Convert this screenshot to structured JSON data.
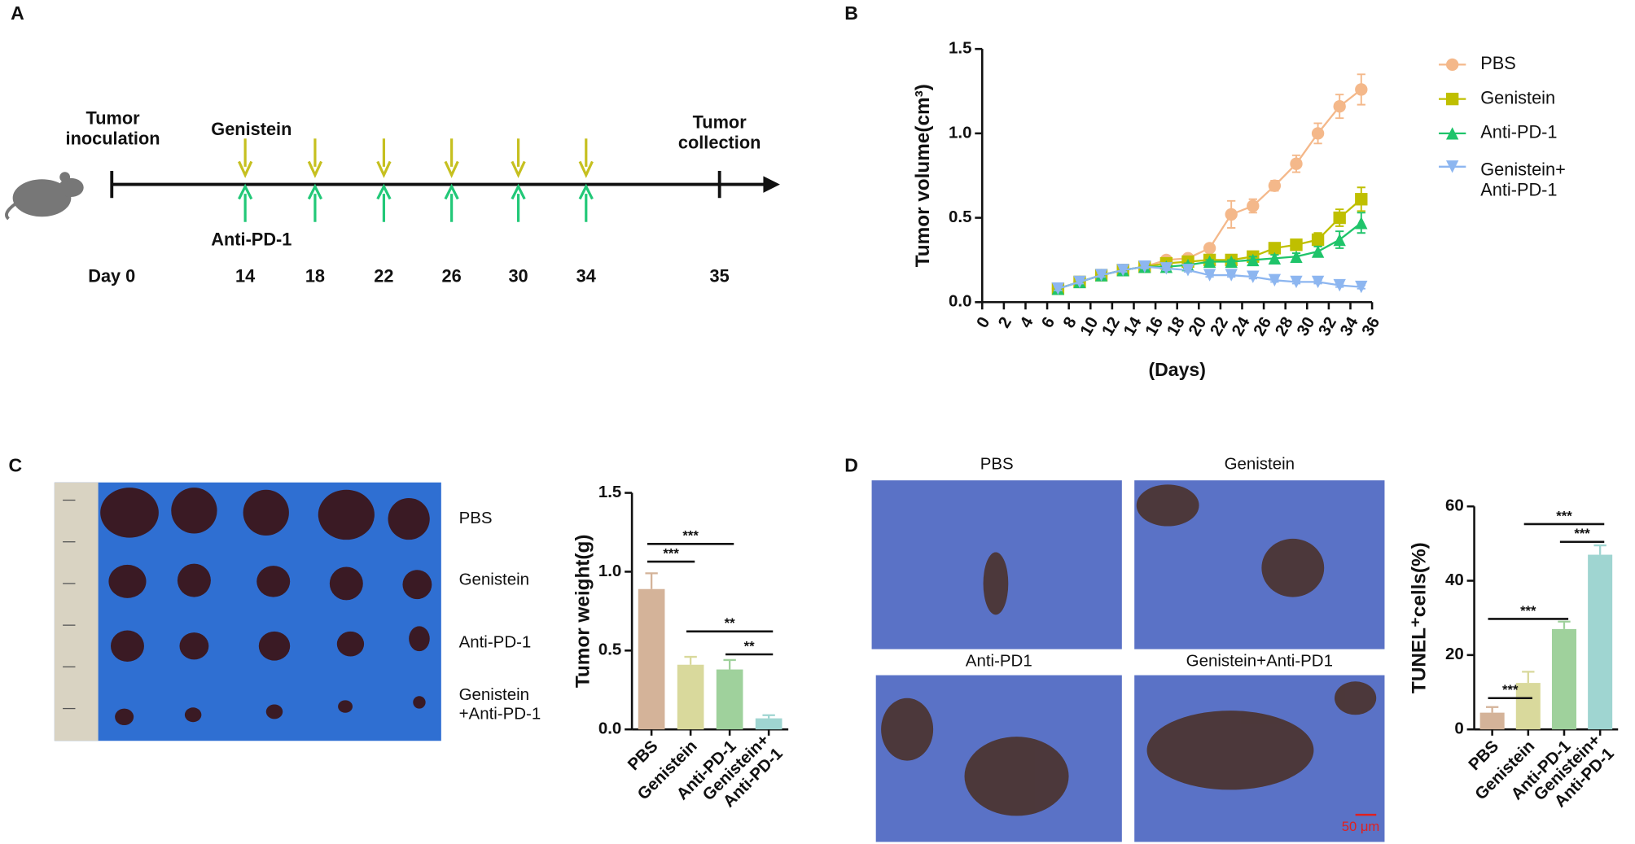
{
  "panel_labels": [
    "A",
    "B",
    "C",
    "D"
  ],
  "timeline": {
    "start_label": "Tumor\ninoculation",
    "end_label": "Tumor\ncollection",
    "top_label": "Genistein",
    "bottom_label": "Anti-PD-1",
    "days": [
      "Day 0",
      14,
      18,
      22,
      26,
      30,
      34,
      35
    ]
  },
  "photo_c": {
    "rows": [
      "PBS",
      "Genistein",
      "Anti-PD-1",
      "Genistein\n+Anti-PD-1"
    ]
  },
  "photo_d": {
    "titles": [
      "PBS",
      "Genistein",
      "Anti-PD1",
      "Genistein+Anti-PD1"
    ],
    "scale_bar": "50 μm"
  },
  "chart_data": [
    {
      "type": "line",
      "xlabel": "(Days)",
      "ylabel": "Tumor volume(cm³)",
      "x": [
        7,
        9,
        11,
        13,
        15,
        17,
        19,
        21,
        23,
        25,
        27,
        29,
        31,
        33,
        35
      ],
      "xlim": [
        0,
        36
      ],
      "xticks": [
        0,
        2,
        4,
        6,
        8,
        10,
        12,
        14,
        16,
        18,
        20,
        22,
        24,
        26,
        28,
        30,
        32,
        34,
        36
      ],
      "ylim": [
        0,
        1.5
      ],
      "yticks": [
        {
          "value": 0,
          "label": "0.0"
        },
        0.5,
        {
          "value": 1,
          "label": "1.0"
        },
        1.5
      ],
      "legend": "right",
      "series": [
        {
          "name": "PBS",
          "color": "#f4b88a",
          "marker": "circle",
          "values": [
            0.08,
            0.12,
            0.16,
            0.19,
            0.21,
            0.25,
            0.26,
            0.32,
            0.52,
            0.57,
            0.69,
            0.82,
            1.0,
            1.16,
            1.26
          ],
          "errors": [
            0.01,
            0.01,
            0.01,
            0.01,
            0.01,
            0.02,
            0.02,
            0.02,
            0.08,
            0.04,
            0.03,
            0.05,
            0.06,
            0.07,
            0.09
          ]
        },
        {
          "name": "Genistein",
          "color": "#bfbf00",
          "marker": "square",
          "values": [
            0.08,
            0.12,
            0.16,
            0.19,
            0.21,
            0.23,
            0.24,
            0.25,
            0.25,
            0.27,
            0.32,
            0.34,
            0.37,
            0.5,
            0.61
          ],
          "errors": [
            0.01,
            0.01,
            0.01,
            0.01,
            0.01,
            0.01,
            0.01,
            0.01,
            0.02,
            0.02,
            0.02,
            0.02,
            0.04,
            0.05,
            0.07
          ]
        },
        {
          "name": "Anti-PD-1",
          "color": "#1fc46a",
          "marker": "triangle",
          "values": [
            0.08,
            0.12,
            0.16,
            0.19,
            0.21,
            0.21,
            0.22,
            0.24,
            0.24,
            0.25,
            0.26,
            0.27,
            0.3,
            0.37,
            0.47
          ],
          "errors": [
            0.01,
            0.01,
            0.01,
            0.01,
            0.01,
            0.01,
            0.01,
            0.01,
            0.01,
            0.02,
            0.02,
            0.02,
            0.03,
            0.05,
            0.06
          ]
        },
        {
          "name": "Genistein+\nAnti-PD-1",
          "color": "#8db6f0",
          "marker": "triangle-down",
          "values": [
            0.08,
            0.12,
            0.16,
            0.19,
            0.21,
            0.2,
            0.19,
            0.16,
            0.16,
            0.15,
            0.13,
            0.12,
            0.12,
            0.1,
            0.09
          ],
          "errors": [
            0.01,
            0.01,
            0.01,
            0.01,
            0.01,
            0.01,
            0.01,
            0.01,
            0.01,
            0.01,
            0.01,
            0.01,
            0.01,
            0.01,
            0.01
          ]
        }
      ]
    },
    {
      "type": "bar",
      "ylabel": "Tumor weight(g)",
      "categories": [
        "PBS",
        "Genistein",
        "Anti-PD-1",
        "Genistein+\nAnti-PD-1"
      ],
      "values": [
        0.89,
        0.41,
        0.38,
        0.07
      ],
      "errors": [
        0.1,
        0.05,
        0.06,
        0.02
      ],
      "colors": [
        "#d4b399",
        "#d9d99c",
        "#9fd19c",
        "#9fd5d1"
      ],
      "ylim": [
        0,
        1.5
      ],
      "yticks": [
        {
          "value": 0,
          "label": "0.0"
        },
        0.5,
        {
          "value": 1,
          "label": "1.0"
        },
        1.5
      ],
      "significance": [
        {
          "groups": [
            0,
            1
          ],
          "label": "***"
        },
        {
          "groups": [
            0,
            2
          ],
          "label": "***"
        },
        {
          "groups": [
            1,
            3
          ],
          "label": "**"
        },
        {
          "groups": [
            2,
            3
          ],
          "label": "**"
        }
      ]
    },
    {
      "type": "bar",
      "ylabel": "TUNEL⁺cells(%)",
      "categories": [
        "PBS",
        "Genistein",
        "Anti-PD-1",
        "Genistein+\nAnti-PD-1"
      ],
      "values": [
        4.5,
        12.5,
        27,
        47
      ],
      "errors": [
        1.5,
        3,
        2,
        2.5
      ],
      "colors": [
        "#d4b399",
        "#d9d99c",
        "#9fd19c",
        "#9fd5d1"
      ],
      "ylim": [
        0,
        60
      ],
      "yticks": [
        0,
        20,
        40,
        60
      ],
      "significance": [
        {
          "groups": [
            0,
            1
          ],
          "label": "***"
        },
        {
          "groups": [
            0,
            2
          ],
          "label": "***"
        },
        {
          "groups": [
            1,
            3
          ],
          "label": "***"
        },
        {
          "groups": [
            2,
            3
          ],
          "label": "***"
        }
      ]
    }
  ]
}
